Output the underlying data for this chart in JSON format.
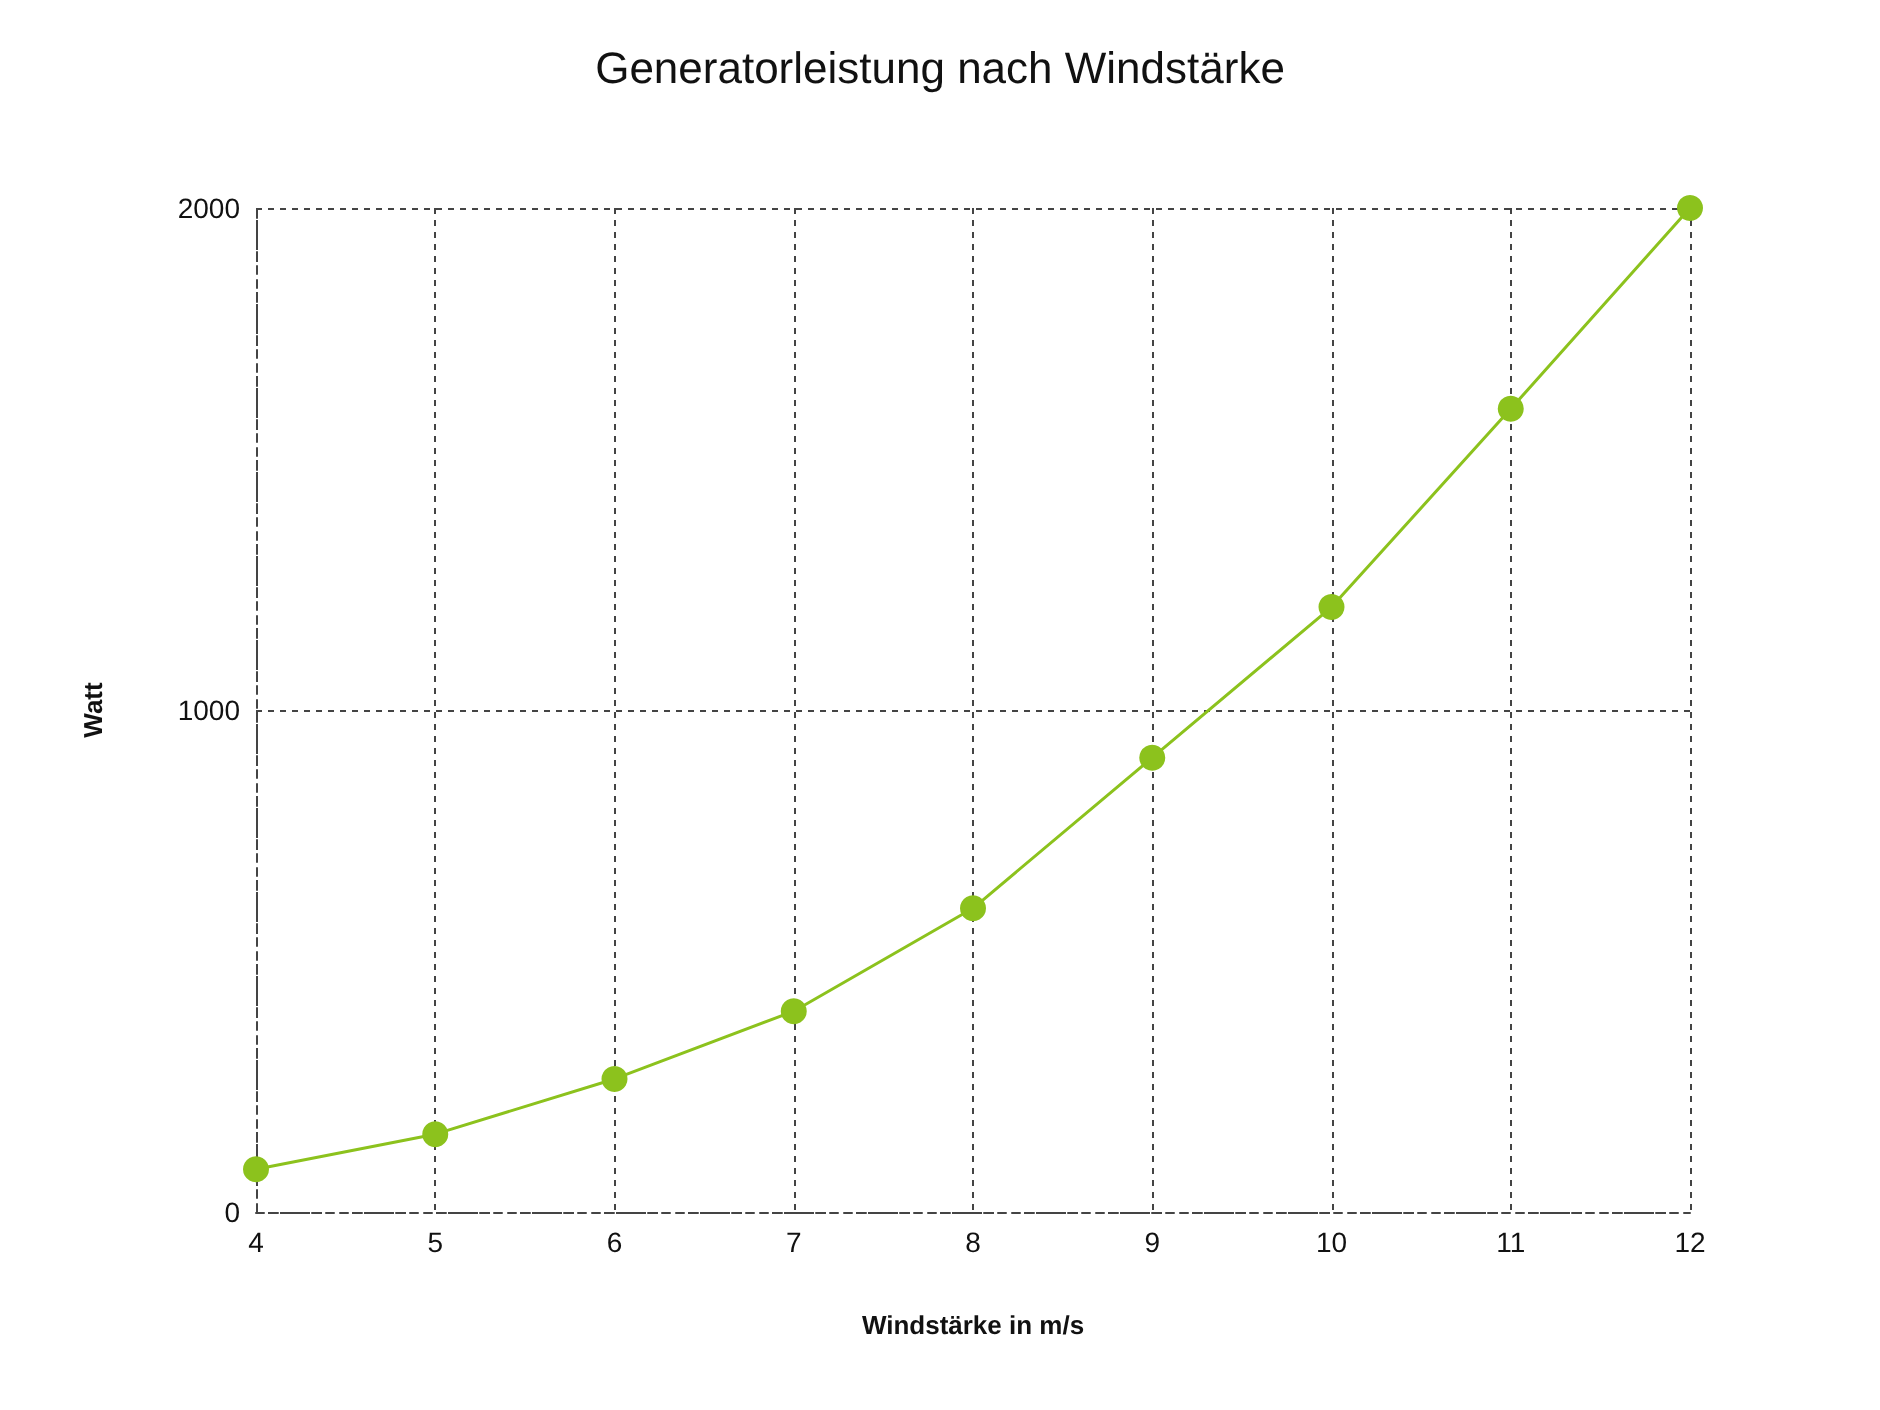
{
  "chart_data": {
    "type": "line",
    "title": "Generatorleistung nach Windstärke",
    "xlabel": "Windstärke in m/s",
    "ylabel": "Watt",
    "x": [
      4,
      5,
      6,
      7,
      8,
      9,
      10,
      11,
      12
    ],
    "series": [
      {
        "color": "#8cc21d",
        "values": [
          85,
          155,
          265,
          400,
          605,
          905,
          1205,
          1600,
          2000
        ]
      }
    ],
    "xlim": [
      4,
      12
    ],
    "xticks": [
      4,
      5,
      6,
      7,
      8,
      9,
      10,
      11,
      12
    ],
    "ylim": [
      0,
      2000
    ],
    "yticks": [
      0,
      1000,
      2000
    ],
    "grid": true,
    "marker": "circle",
    "line_style": "solid"
  }
}
